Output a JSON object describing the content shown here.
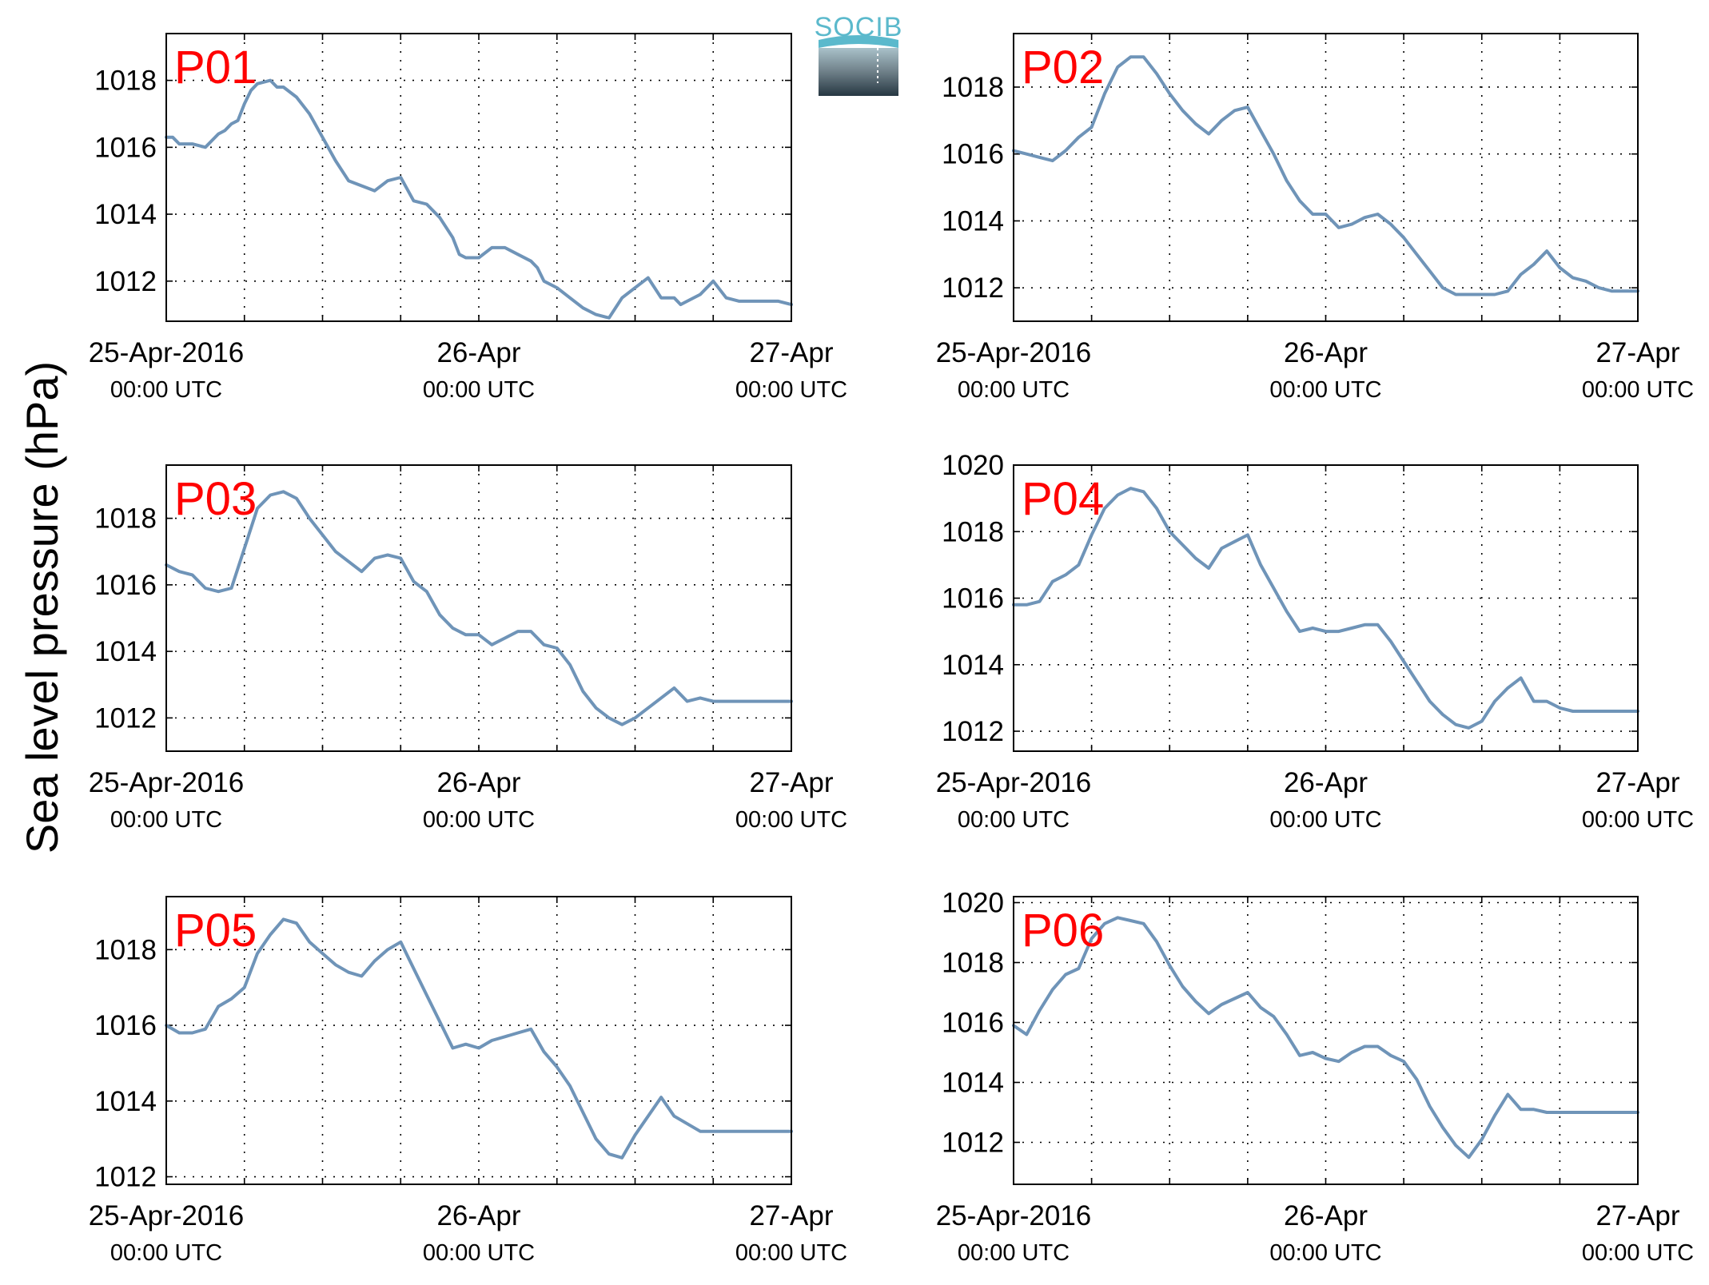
{
  "figure": {
    "ylabel": "Sea level pressure (hPa)",
    "logo_text": "SOCIB"
  },
  "chart_data": [
    {
      "type": "line",
      "panel_label": "P01",
      "ylabel": "Sea level pressure (hPa)",
      "x_ticks": [
        {
          "label": "25-Apr-2016",
          "sub": "00:00 UTC"
        },
        {
          "label": "26-Apr",
          "sub": "00:00 UTC"
        },
        {
          "label": "27-Apr",
          "sub": "00:00 UTC"
        }
      ],
      "xlim": [
        0,
        48
      ],
      "xunit": "hours since 25-Apr-2016 00:00 UTC",
      "ylim": [
        1010.8,
        1019.4
      ],
      "yticks": [
        1012,
        1014,
        1016,
        1018
      ],
      "grid": true,
      "line_color": "#6f94b8",
      "series": [
        {
          "x": [
            0,
            0.5,
            1,
            2,
            3,
            3.5,
            4,
            4.5,
            5,
            5.5,
            6,
            6.5,
            7,
            8,
            8.5,
            9,
            10,
            11,
            12,
            13,
            14,
            16,
            17,
            18,
            19,
            20,
            21,
            22,
            22.5,
            23,
            24,
            25,
            26,
            27,
            28,
            28.5,
            29,
            30,
            31,
            32,
            33,
            34,
            35,
            36,
            37,
            38,
            39,
            39.5,
            40,
            41,
            42,
            43,
            44,
            44.5,
            45,
            46,
            47,
            48
          ],
          "y": [
            1016.3,
            1016.3,
            1016.1,
            1016.1,
            1016.0,
            1016.2,
            1016.4,
            1016.5,
            1016.7,
            1016.8,
            1017.3,
            1017.7,
            1017.9,
            1018.0,
            1017.8,
            1017.8,
            1017.5,
            1017.0,
            1016.3,
            1015.6,
            1015.0,
            1014.7,
            1015.0,
            1015.1,
            1014.4,
            1014.3,
            1013.9,
            1013.3,
            1012.8,
            1012.7,
            1012.7,
            1013.0,
            1013.0,
            1012.8,
            1012.6,
            1012.4,
            1012.0,
            1011.8,
            1011.5,
            1011.2,
            1011.0,
            1010.9,
            1011.5,
            1011.8,
            1012.1,
            1011.5,
            1011.5,
            1011.3,
            1011.4,
            1011.6,
            1012.0,
            1011.5,
            1011.4,
            1011.4,
            1011.4,
            1011.4,
            1011.4,
            1011.3
          ]
        }
      ]
    },
    {
      "type": "line",
      "panel_label": "P02",
      "ylabel": "Sea level pressure (hPa)",
      "x_ticks": [
        {
          "label": "25-Apr-2016",
          "sub": "00:00 UTC"
        },
        {
          "label": "26-Apr",
          "sub": "00:00 UTC"
        },
        {
          "label": "27-Apr",
          "sub": "00:00 UTC"
        }
      ],
      "xlim": [
        0,
        48
      ],
      "xunit": "hours since 25-Apr-2016 00:00 UTC",
      "ylim": [
        1011.0,
        1019.6
      ],
      "yticks": [
        1012,
        1014,
        1016,
        1018
      ],
      "grid": true,
      "line_color": "#6f94b8",
      "series": [
        {
          "x": [
            0,
            1,
            2,
            3,
            4,
            5,
            6,
            7,
            8,
            9,
            10,
            11,
            12,
            13,
            14,
            15,
            16,
            17,
            18,
            19,
            20,
            21,
            22,
            23,
            24,
            25,
            26,
            27,
            28,
            29,
            30,
            31,
            32,
            33,
            34,
            35,
            36,
            37,
            38,
            39,
            40,
            41,
            42,
            43,
            44,
            45,
            46,
            47,
            48
          ],
          "y": [
            1016.1,
            1016.0,
            1015.9,
            1015.8,
            1016.1,
            1016.5,
            1016.8,
            1017.8,
            1018.6,
            1018.9,
            1018.9,
            1018.4,
            1017.8,
            1017.3,
            1016.9,
            1016.6,
            1017.0,
            1017.3,
            1017.4,
            1016.7,
            1016.0,
            1015.2,
            1014.6,
            1014.2,
            1014.2,
            1013.8,
            1013.9,
            1014.1,
            1014.2,
            1013.9,
            1013.5,
            1013.0,
            1012.5,
            1012.0,
            1011.8,
            1011.8,
            1011.8,
            1011.8,
            1011.9,
            1012.4,
            1012.7,
            1013.1,
            1012.6,
            1012.3,
            1012.2,
            1012.0,
            1011.9,
            1011.9,
            1011.9
          ]
        }
      ]
    },
    {
      "type": "line",
      "panel_label": "P03",
      "ylabel": "Sea level pressure (hPa)",
      "x_ticks": [
        {
          "label": "25-Apr-2016",
          "sub": "00:00 UTC"
        },
        {
          "label": "26-Apr",
          "sub": "00:00 UTC"
        },
        {
          "label": "27-Apr",
          "sub": "00:00 UTC"
        }
      ],
      "xlim": [
        0,
        48
      ],
      "xunit": "hours since 25-Apr-2016 00:00 UTC",
      "ylim": [
        1011.0,
        1019.6
      ],
      "yticks": [
        1012,
        1014,
        1016,
        1018
      ],
      "grid": true,
      "line_color": "#6f94b8",
      "series": [
        {
          "x": [
            0,
            1,
            2,
            3,
            4,
            5,
            6,
            7,
            8,
            9,
            10,
            11,
            12,
            13,
            14,
            15,
            16,
            17,
            18,
            19,
            20,
            21,
            22,
            23,
            24,
            25,
            26,
            27,
            28,
            29,
            30,
            31,
            32,
            33,
            34,
            35,
            36,
            37,
            38,
            39,
            40,
            41,
            42,
            43,
            44,
            45,
            46,
            47,
            48
          ],
          "y": [
            1016.6,
            1016.4,
            1016.3,
            1015.9,
            1015.8,
            1015.9,
            1017.1,
            1018.3,
            1018.7,
            1018.8,
            1018.6,
            1018.0,
            1017.5,
            1017.0,
            1016.7,
            1016.4,
            1016.8,
            1016.9,
            1016.8,
            1016.1,
            1015.8,
            1015.1,
            1014.7,
            1014.5,
            1014.5,
            1014.2,
            1014.4,
            1014.6,
            1014.6,
            1014.2,
            1014.1,
            1013.6,
            1012.8,
            1012.3,
            1012.0,
            1011.8,
            1012.0,
            1012.3,
            1012.6,
            1012.9,
            1012.5,
            1012.6,
            1012.5,
            1012.5,
            1012.5,
            1012.5,
            1012.5,
            1012.5,
            1012.5
          ]
        }
      ]
    },
    {
      "type": "line",
      "panel_label": "P04",
      "ylabel": "Sea level pressure (hPa)",
      "x_ticks": [
        {
          "label": "25-Apr-2016",
          "sub": "00:00 UTC"
        },
        {
          "label": "26-Apr",
          "sub": "00:00 UTC"
        },
        {
          "label": "27-Apr",
          "sub": "00:00 UTC"
        }
      ],
      "xlim": [
        0,
        48
      ],
      "xunit": "hours since 25-Apr-2016 00:00 UTC",
      "ylim": [
        1011.4,
        1020.0
      ],
      "yticks": [
        1012,
        1014,
        1016,
        1018,
        1020
      ],
      "grid": true,
      "line_color": "#6f94b8",
      "series": [
        {
          "x": [
            0,
            1,
            2,
            3,
            4,
            5,
            6,
            7,
            8,
            9,
            10,
            11,
            12,
            13,
            14,
            15,
            16,
            17,
            18,
            19,
            20,
            21,
            22,
            23,
            24,
            25,
            26,
            27,
            28,
            29,
            30,
            31,
            32,
            33,
            34,
            35,
            36,
            37,
            38,
            39,
            40,
            41,
            42,
            43,
            44,
            45,
            46,
            47,
            48
          ],
          "y": [
            1015.8,
            1015.8,
            1015.9,
            1016.5,
            1016.7,
            1017.0,
            1017.9,
            1018.7,
            1019.1,
            1019.3,
            1019.2,
            1018.7,
            1018.0,
            1017.6,
            1017.2,
            1016.9,
            1017.5,
            1017.7,
            1017.9,
            1017.0,
            1016.3,
            1015.6,
            1015.0,
            1015.1,
            1015.0,
            1015.0,
            1015.1,
            1015.2,
            1015.2,
            1014.7,
            1014.1,
            1013.5,
            1012.9,
            1012.5,
            1012.2,
            1012.1,
            1012.3,
            1012.9,
            1013.3,
            1013.6,
            1012.9,
            1012.9,
            1012.7,
            1012.6,
            1012.6,
            1012.6,
            1012.6,
            1012.6,
            1012.6
          ]
        }
      ]
    },
    {
      "type": "line",
      "panel_label": "P05",
      "ylabel": "Sea level pressure (hPa)",
      "x_ticks": [
        {
          "label": "25-Apr-2016",
          "sub": "00:00 UTC"
        },
        {
          "label": "26-Apr",
          "sub": "00:00 UTC"
        },
        {
          "label": "27-Apr",
          "sub": "00:00 UTC"
        }
      ],
      "xlim": [
        0,
        48
      ],
      "xunit": "hours since 25-Apr-2016 00:00 UTC",
      "ylim": [
        1011.8,
        1019.4
      ],
      "yticks": [
        1012,
        1014,
        1016,
        1018
      ],
      "grid": true,
      "line_color": "#6f94b8",
      "series": [
        {
          "x": [
            0,
            1,
            2,
            3,
            4,
            5,
            6,
            7,
            8,
            9,
            10,
            11,
            12,
            13,
            14,
            15,
            16,
            17,
            18,
            19,
            20,
            21,
            22,
            23,
            24,
            25,
            26,
            27,
            28,
            29,
            30,
            31,
            32,
            33,
            34,
            35,
            36,
            37,
            38,
            39,
            40,
            41,
            42,
            43,
            44,
            45,
            46,
            47,
            48
          ],
          "y": [
            1016.0,
            1015.8,
            1015.8,
            1015.9,
            1016.5,
            1016.7,
            1017.0,
            1017.9,
            1018.4,
            1018.8,
            1018.7,
            1018.2,
            1017.9,
            1017.6,
            1017.4,
            1017.3,
            1017.7,
            1018.0,
            1018.2,
            1017.5,
            1016.8,
            1016.1,
            1015.4,
            1015.5,
            1015.4,
            1015.6,
            1015.7,
            1015.8,
            1015.9,
            1015.3,
            1014.9,
            1014.4,
            1013.7,
            1013.0,
            1012.6,
            1012.5,
            1013.1,
            1013.6,
            1014.1,
            1013.6,
            1013.4,
            1013.2,
            1013.2,
            1013.2,
            1013.2,
            1013.2,
            1013.2,
            1013.2,
            1013.2
          ]
        }
      ]
    },
    {
      "type": "line",
      "panel_label": "P06",
      "ylabel": "Sea level pressure (hPa)",
      "x_ticks": [
        {
          "label": "25-Apr-2016",
          "sub": "00:00 UTC"
        },
        {
          "label": "26-Apr",
          "sub": "00:00 UTC"
        },
        {
          "label": "27-Apr",
          "sub": "00:00 UTC"
        }
      ],
      "xlim": [
        0,
        48
      ],
      "xunit": "hours since 25-Apr-2016 00:00 UTC",
      "ylim": [
        1010.6,
        1020.2
      ],
      "yticks": [
        1012,
        1014,
        1016,
        1018,
        1020
      ],
      "grid": true,
      "line_color": "#6f94b8",
      "series": [
        {
          "x": [
            0,
            1,
            2,
            3,
            4,
            5,
            6,
            7,
            8,
            9,
            10,
            11,
            12,
            13,
            14,
            15,
            16,
            17,
            18,
            19,
            20,
            21,
            22,
            23,
            24,
            25,
            26,
            27,
            28,
            29,
            30,
            31,
            32,
            33,
            34,
            35,
            36,
            37,
            38,
            39,
            40,
            41,
            42,
            43,
            44,
            45,
            46,
            47,
            48
          ],
          "y": [
            1015.9,
            1015.6,
            1016.4,
            1017.1,
            1017.6,
            1017.8,
            1018.8,
            1019.3,
            1019.5,
            1019.4,
            1019.3,
            1018.7,
            1017.9,
            1017.2,
            1016.7,
            1016.3,
            1016.6,
            1016.8,
            1017.0,
            1016.5,
            1016.2,
            1015.6,
            1014.9,
            1015.0,
            1014.8,
            1014.7,
            1015.0,
            1015.2,
            1015.2,
            1014.9,
            1014.7,
            1014.1,
            1013.2,
            1012.5,
            1011.9,
            1011.5,
            1012.1,
            1012.9,
            1013.6,
            1013.1,
            1013.1,
            1013.0,
            1013.0,
            1013.0,
            1013.0,
            1013.0,
            1013.0,
            1013.0,
            1013.0
          ]
        }
      ]
    }
  ]
}
